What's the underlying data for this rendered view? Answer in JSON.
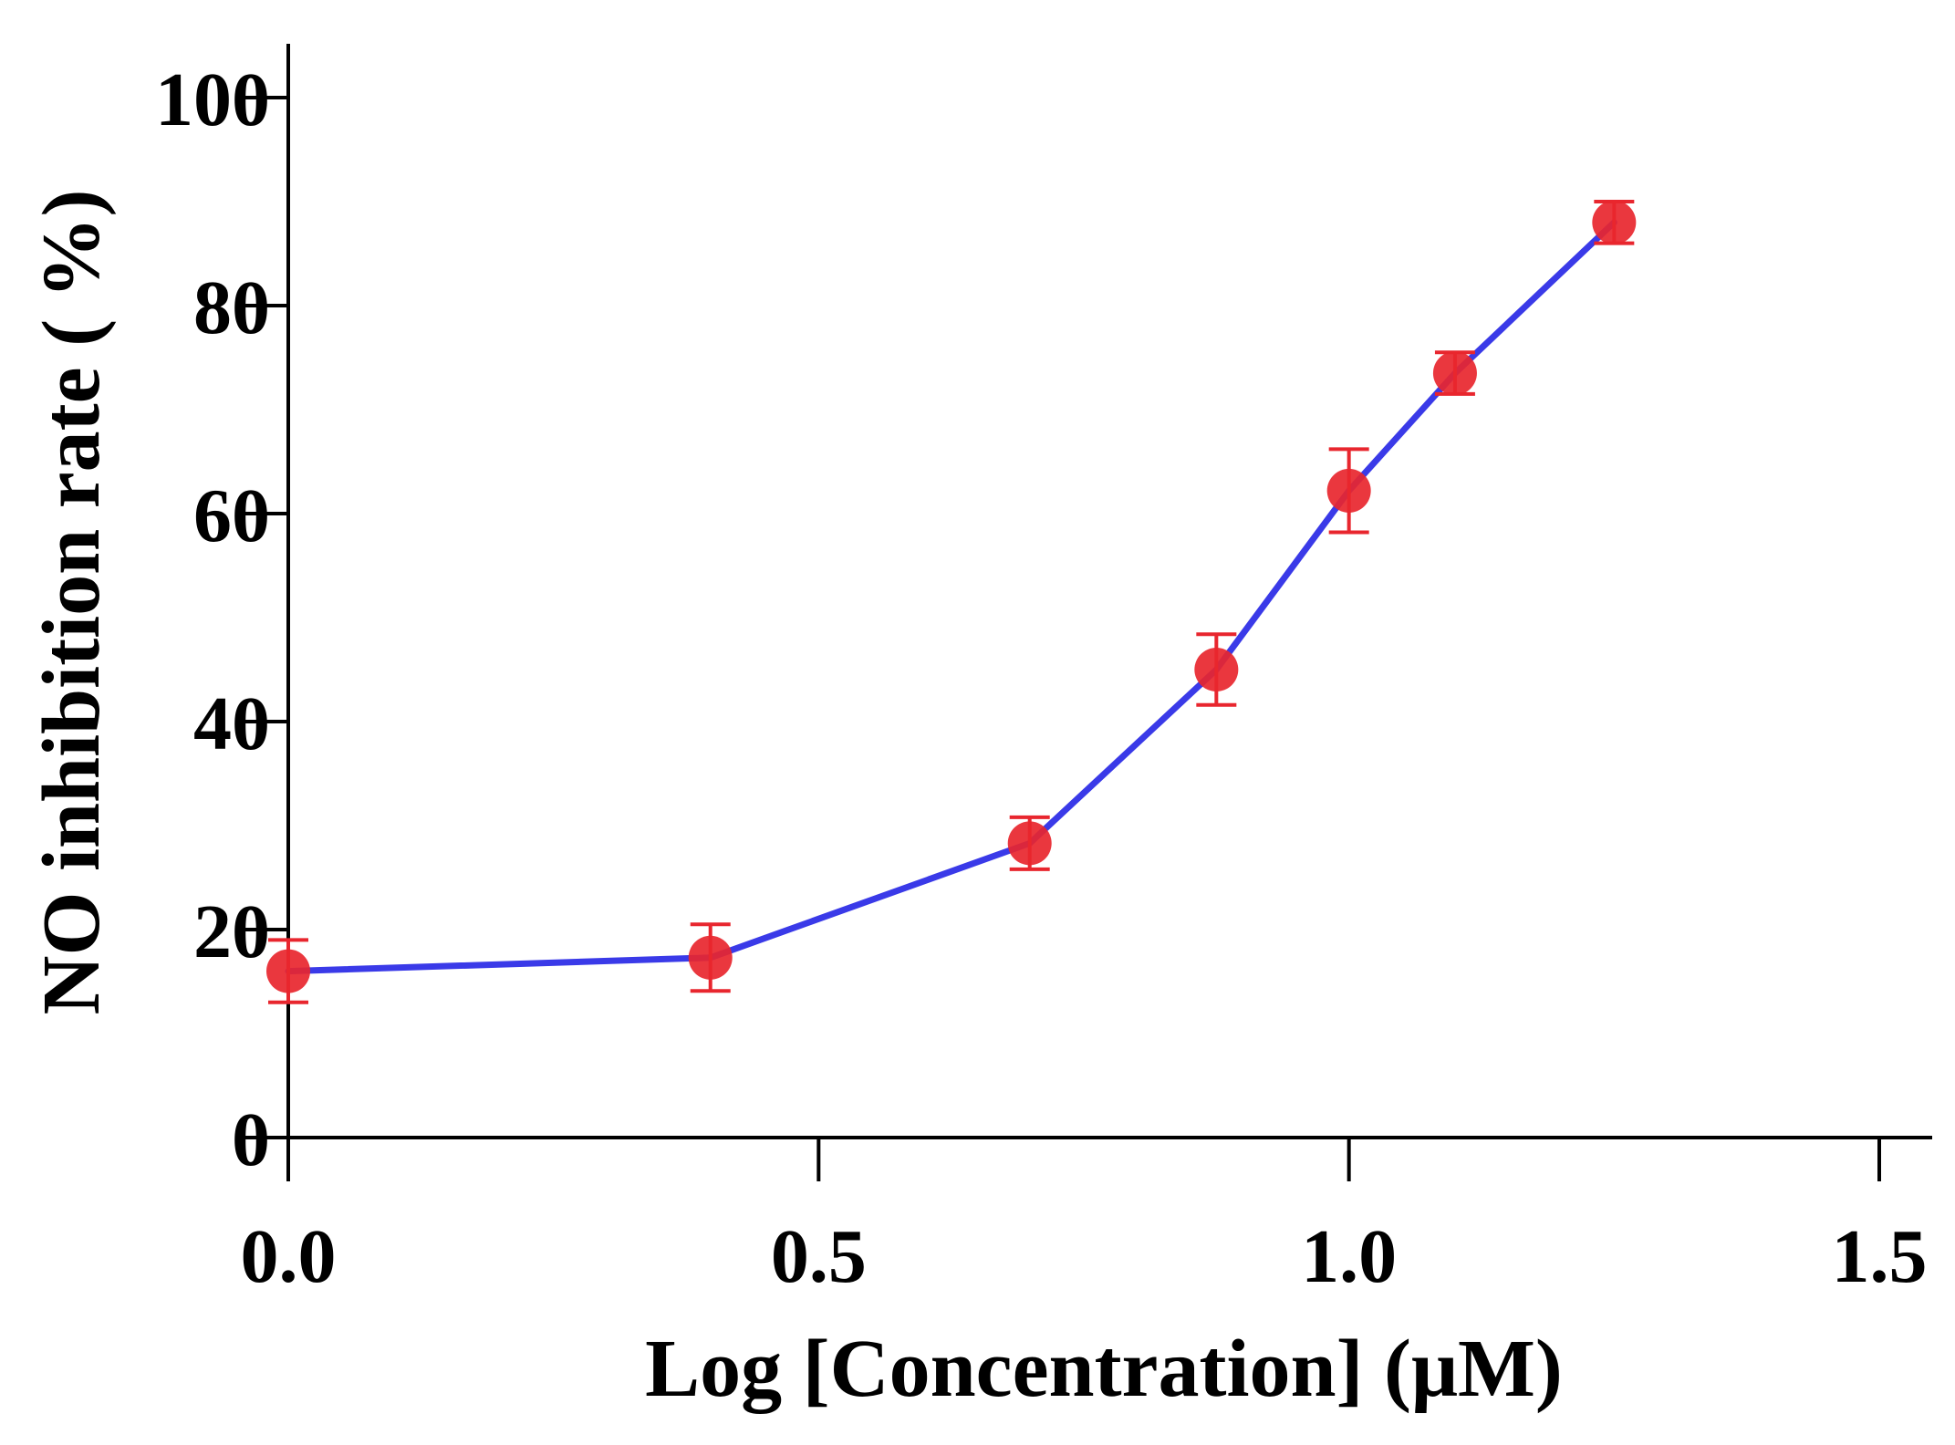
{
  "chart_data": {
    "type": "line",
    "title": "",
    "xlabel": "Log [Concentration] (μM)",
    "ylabel": "NO inhibition rate ( %)",
    "xlim": [
      0.0,
      1.5
    ],
    "ylim": [
      0,
      100
    ],
    "x_ticks": [
      "0.0",
      "0.5",
      "1.0",
      "1.5"
    ],
    "y_ticks": [
      "0",
      "20",
      "40",
      "60",
      "80",
      "100"
    ],
    "grid": false,
    "series": [
      {
        "name": "NO inhibition rate",
        "x": [
          0.0,
          0.398,
          0.699,
          0.875,
          1.0,
          1.1,
          1.25
        ],
        "y": [
          16.0,
          17.3,
          28.3,
          45.0,
          62.2,
          73.5,
          88.0
        ],
        "error": [
          3.0,
          3.2,
          2.5,
          3.4,
          4.0,
          2.0,
          2.0
        ],
        "line_color": "#3a3ae8",
        "marker_color": "#e8262e"
      }
    ]
  }
}
